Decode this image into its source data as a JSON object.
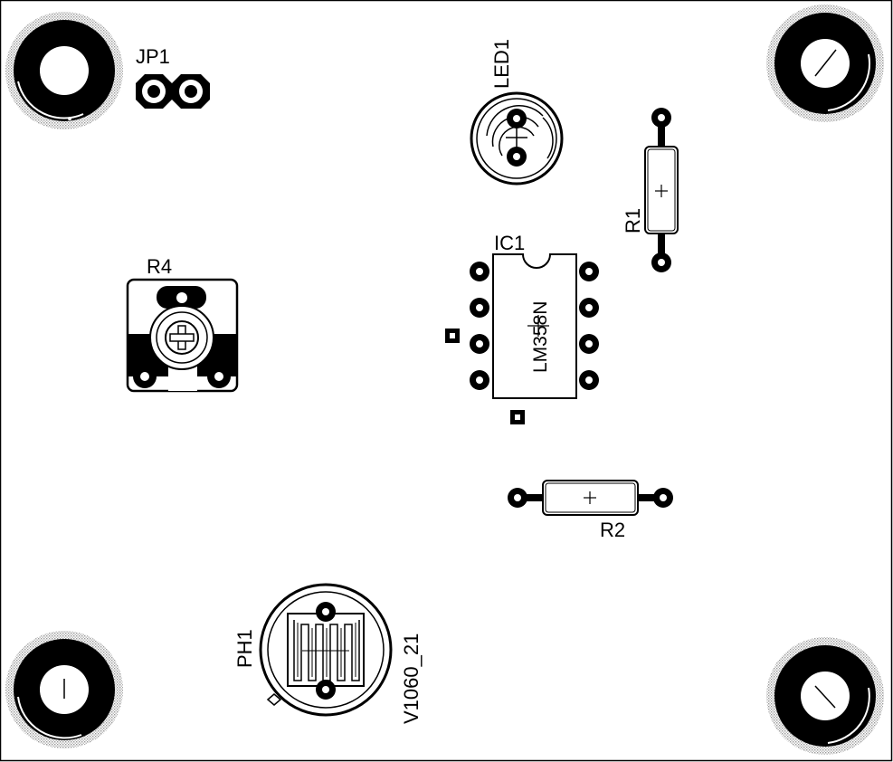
{
  "board": {
    "labels": {
      "jp1": "JP1",
      "led1": "LED1",
      "r1": "R1",
      "ic1": "IC1",
      "ic1_value": "LM358N",
      "r4": "R4",
      "r2": "R2",
      "ph1": "PH1",
      "ph1_value": "V1060_21"
    }
  },
  "colors": {
    "ink": "#000000",
    "paper": "#ffffff",
    "halo": "#c8c8c8"
  }
}
